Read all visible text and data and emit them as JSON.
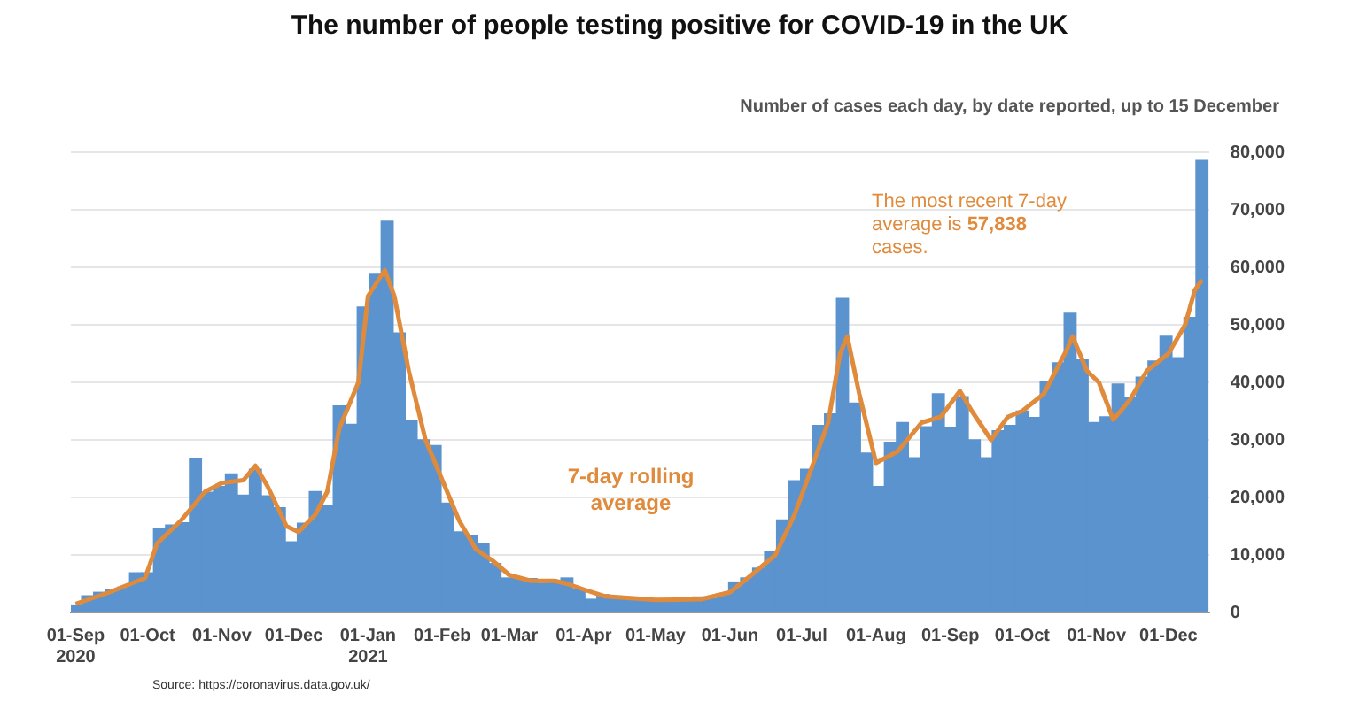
{
  "chart_data": {
    "type": "bar",
    "title": "The number of people testing positive for COVID-19 in the UK",
    "subtitle": "Number of cases each day, by date reported, up to 15 December",
    "annotations": [
      "The most recent 7-day average is 57,838 cases.",
      "Source: https://coronavirus.data.gov.uk/"
    ],
    "x": [
      "2020-09-01",
      "2020-09-06",
      "2020-09-11",
      "2020-09-16",
      "2020-09-21",
      "2020-09-26",
      "2020-10-01",
      "2020-10-06",
      "2020-10-11",
      "2020-10-16",
      "2020-10-21",
      "2020-10-26",
      "2020-10-31",
      "2020-11-05",
      "2020-11-10",
      "2020-11-15",
      "2020-11-20",
      "2020-11-25",
      "2020-11-30",
      "2020-12-05",
      "2020-12-10",
      "2020-12-15",
      "2020-12-20",
      "2020-12-25",
      "2020-12-30",
      "2021-01-04",
      "2021-01-09",
      "2021-01-14",
      "2021-01-19",
      "2021-01-24",
      "2021-01-29",
      "2021-02-03",
      "2021-02-08",
      "2021-02-13",
      "2021-02-18",
      "2021-02-23",
      "2021-02-28",
      "2021-03-05",
      "2021-03-10",
      "2021-03-15",
      "2021-03-20",
      "2021-03-25",
      "2021-03-30",
      "2021-04-04",
      "2021-04-09",
      "2021-04-14",
      "2021-04-19",
      "2021-04-24",
      "2021-04-29",
      "2021-05-04",
      "2021-05-09",
      "2021-05-14",
      "2021-05-19",
      "2021-05-24",
      "2021-05-29",
      "2021-06-03",
      "2021-06-08",
      "2021-06-13",
      "2021-06-18",
      "2021-06-23",
      "2021-06-28",
      "2021-07-03",
      "2021-07-08",
      "2021-07-13",
      "2021-07-18",
      "2021-07-23",
      "2021-07-28",
      "2021-08-02",
      "2021-08-07",
      "2021-08-12",
      "2021-08-17",
      "2021-08-22",
      "2021-08-27",
      "2021-09-01",
      "2021-09-06",
      "2021-09-11",
      "2021-09-16",
      "2021-09-21",
      "2021-09-26",
      "2021-10-01",
      "2021-10-06",
      "2021-10-11",
      "2021-10-16",
      "2021-10-21",
      "2021-10-26",
      "2021-10-31",
      "2021-11-05",
      "2021-11-10",
      "2021-11-15",
      "2021-11-20",
      "2021-11-25",
      "2021-11-30",
      "2021-12-05",
      "2021-12-10",
      "2021-12-15"
    ],
    "series": [
      {
        "color": "#5b93cf",
        "values": [
          1300,
          2900,
          3500,
          3900,
          4400,
          6900,
          6900,
          14500,
          15200,
          15600,
          26700,
          20900,
          21900,
          24100,
          20400,
          24900,
          20300,
          18200,
          12300,
          15500,
          21000,
          18500,
          35900,
          32700,
          53100,
          58800,
          68000,
          48600,
          33300,
          30000,
          29000,
          19000,
          14000,
          13300,
          12000,
          8500,
          6000,
          6000,
          5900,
          5100,
          5500,
          6000,
          4000,
          2300,
          3100,
          2500,
          2500,
          2100,
          2000,
          1900,
          1800,
          2200,
          2700,
          2400,
          3200,
          5300,
          6000,
          7700,
          10500,
          16100,
          22900,
          24900,
          32500,
          34500,
          54600,
          36400,
          27700,
          21900,
          29600,
          33000,
          26900,
          32300,
          38000,
          32200,
          37500,
          30000,
          26900,
          31600,
          32500,
          35000,
          33900,
          40200,
          43400,
          52000,
          43900,
          33000,
          34000,
          39700,
          37300,
          40900,
          43700,
          48000,
          44300,
          51300,
          78600
        ]
      },
      {
        "type": "line",
        "name": "7-day rolling average",
        "color": "#e08a3c",
        "x": [
          "2020-09-01",
          "2020-09-15",
          "2020-09-30",
          "2020-10-05",
          "2020-10-15",
          "2020-10-25",
          "2020-11-01",
          "2020-11-10",
          "2020-11-15",
          "2020-11-20",
          "2020-11-28",
          "2020-12-03",
          "2020-12-10",
          "2020-12-15",
          "2020-12-20",
          "2020-12-28",
          "2021-01-01",
          "2021-01-08",
          "2021-01-12",
          "2021-01-18",
          "2021-01-25",
          "2021-02-01",
          "2021-02-08",
          "2021-02-15",
          "2021-02-22",
          "2021-03-01",
          "2021-03-10",
          "2021-03-20",
          "2021-03-25",
          "2021-04-01",
          "2021-04-10",
          "2021-05-01",
          "2021-05-20",
          "2021-06-01",
          "2021-06-10",
          "2021-06-20",
          "2021-06-28",
          "2021-07-05",
          "2021-07-12",
          "2021-07-17",
          "2021-07-20",
          "2021-07-25",
          "2021-08-01",
          "2021-08-10",
          "2021-08-20",
          "2021-08-28",
          "2021-09-05",
          "2021-09-10",
          "2021-09-18",
          "2021-09-25",
          "2021-10-01",
          "2021-10-10",
          "2021-10-20",
          "2021-10-22",
          "2021-10-28",
          "2021-11-02",
          "2021-11-08",
          "2021-11-15",
          "2021-11-22",
          "2021-12-01",
          "2021-12-08",
          "2021-12-12",
          "2021-12-15"
        ],
        "values": [
          1500,
          3500,
          6000,
          12000,
          16000,
          21000,
          22500,
          23000,
          25500,
          22000,
          15000,
          14000,
          17000,
          21000,
          32000,
          40000,
          55000,
          59500,
          55000,
          42000,
          30000,
          23000,
          16000,
          11000,
          9000,
          6500,
          5500,
          5500,
          5000,
          4000,
          2800,
          2200,
          2300,
          3500,
          6500,
          10000,
          17000,
          25000,
          33000,
          45000,
          48000,
          38000,
          26000,
          28000,
          33000,
          34000,
          38500,
          35000,
          30000,
          34000,
          35000,
          38000,
          46000,
          48000,
          42000,
          40000,
          33500,
          37000,
          42000,
          45000,
          50000,
          56000,
          57838
        ]
      }
    ],
    "xlim": [
      "2020-08-30",
      "2021-12-18"
    ],
    "xticks": [
      {
        "value": "2020-09-01",
        "label": "01-Sep 2020"
      },
      {
        "value": "2020-10-01",
        "label": "01-Oct"
      },
      {
        "value": "2020-11-01",
        "label": "01-Nov"
      },
      {
        "value": "2020-12-01",
        "label": "01-Dec"
      },
      {
        "value": "2021-01-01",
        "label": "01-Jan 2021"
      },
      {
        "value": "2021-02-01",
        "label": "01-Feb"
      },
      {
        "value": "2021-03-01",
        "label": "01-Mar"
      },
      {
        "value": "2021-04-01",
        "label": "01-Apr"
      },
      {
        "value": "2021-05-01",
        "label": "01-May"
      },
      {
        "value": "2021-06-01",
        "label": "01-Jun"
      },
      {
        "value": "2021-07-01",
        "label": "01-Jul"
      },
      {
        "value": "2021-08-01",
        "label": "01-Aug"
      },
      {
        "value": "2021-09-01",
        "label": "01-Sep"
      },
      {
        "value": "2021-10-01",
        "label": "01-Oct"
      },
      {
        "value": "2021-11-01",
        "label": "01-Nov"
      },
      {
        "value": "2021-12-01",
        "label": "01-Dec"
      }
    ],
    "ylim": [
      0,
      80000
    ],
    "yticks": [
      0,
      {
        "value": 10000,
        "label": "10,000"
      },
      {
        "value": 20000,
        "label": "20,000"
      },
      {
        "value": 30000,
        "label": "30,000"
      },
      {
        "value": 40000,
        "label": "40,000"
      },
      {
        "value": 50000,
        "label": "50,000"
      },
      {
        "value": 60000,
        "label": "60,000"
      },
      {
        "value": 70000,
        "label": "70,000"
      },
      {
        "value": 80000,
        "label": "80,000"
      }
    ],
    "grid": "y",
    "legend": false,
    "marker": "none",
    "line_style": "solid"
  }
}
